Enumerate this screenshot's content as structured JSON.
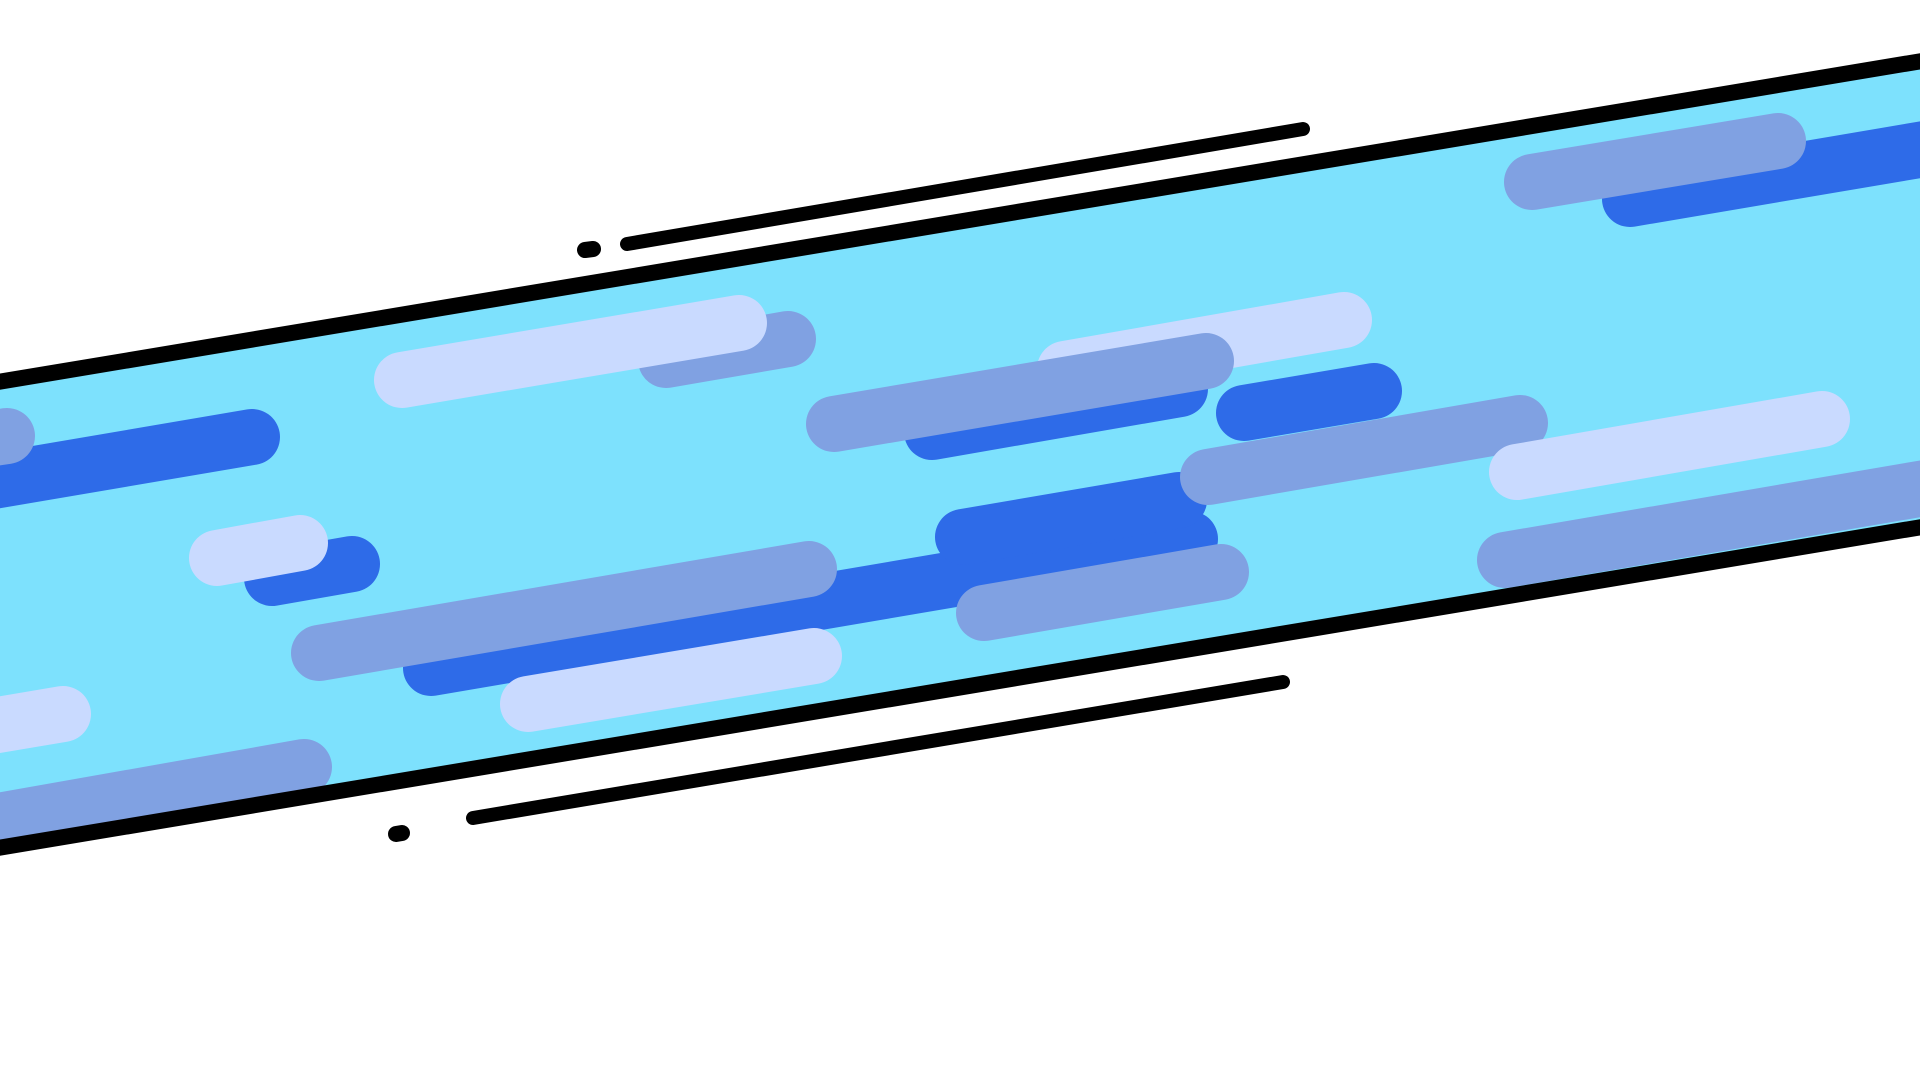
{
  "colors": {
    "background": "#ffffff",
    "band": "#7de1fd",
    "border": "#000000",
    "stripe_dark": "#2e6be8",
    "stripe_mid": "#80a1e2",
    "stripe_light": "#c9daff"
  },
  "scene": {
    "kind": "abstract-graphic",
    "elements": [
      "diagonal-band",
      "band-border-lines",
      "speed-lines",
      "motion-dots",
      "stripes"
    ]
  }
}
